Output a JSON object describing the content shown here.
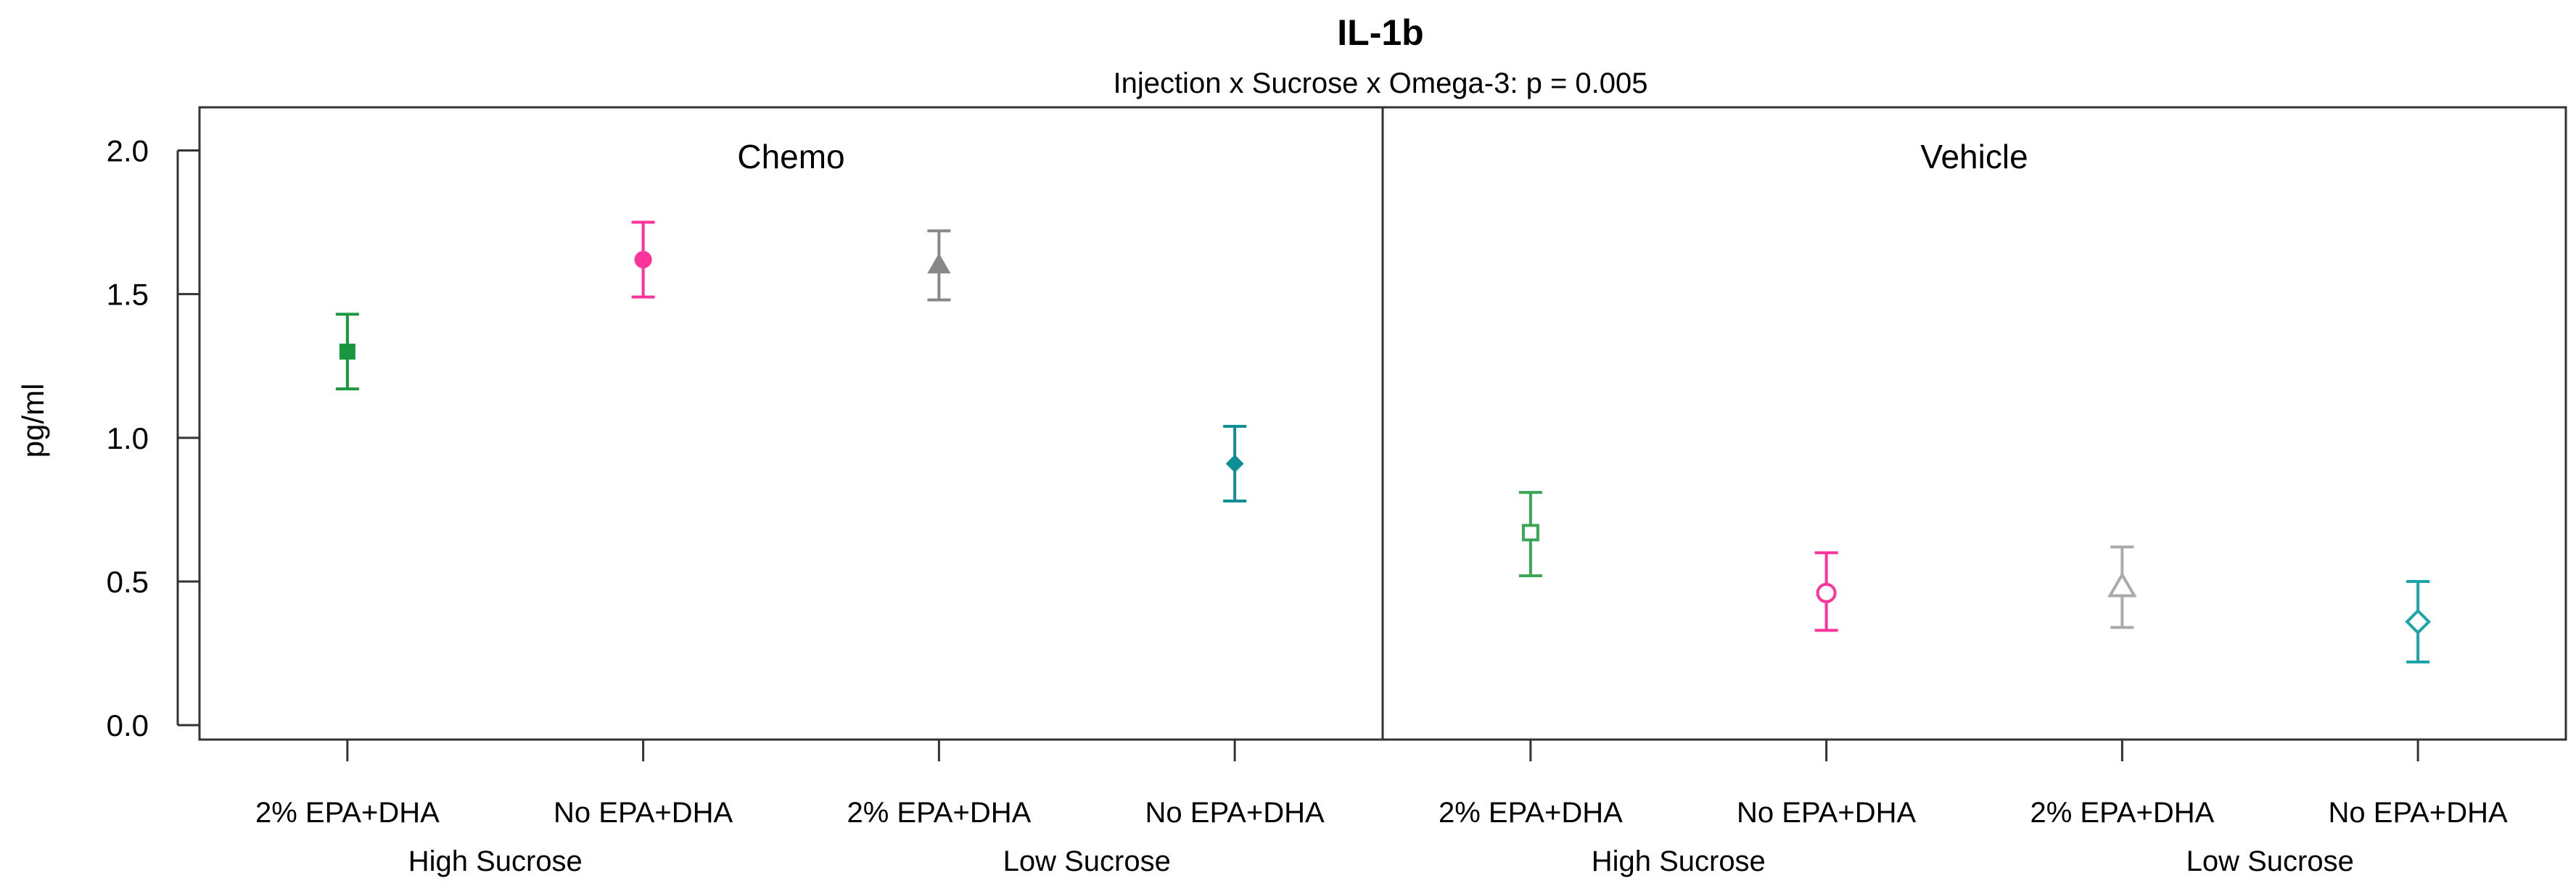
{
  "chart_data": {
    "type": "scatter",
    "subtype": "point-with-error-bars",
    "title": "IL-1b",
    "subtitle": "Injection x Sucrose x Omega-3: p = 0.005",
    "ylabel": "pg/ml",
    "xlabel": "",
    "ylim": [
      -0.05,
      2.15
    ],
    "yticks": [
      0.0,
      0.5,
      1.0,
      1.5,
      2.0
    ],
    "ytick_labels": [
      "0.0",
      "0.5",
      "1.0",
      "1.5",
      "2.0"
    ],
    "grid": false,
    "panels": [
      {
        "label": "Chemo",
        "groups": [
          "High Sucrose",
          "Low Sucrose"
        ],
        "points": [
          {
            "category": "2% EPA+DHA",
            "group": "High Sucrose",
            "mean": 1.3,
            "lower": 1.17,
            "upper": 1.43,
            "color": "#1a9641",
            "marker": "square",
            "filled": true
          },
          {
            "category": "No EPA+DHA",
            "group": "High Sucrose",
            "mean": 1.62,
            "lower": 1.49,
            "upper": 1.75,
            "color": "#ff3399",
            "marker": "circle",
            "filled": true
          },
          {
            "category": "2% EPA+DHA",
            "group": "Low Sucrose",
            "mean": 1.6,
            "lower": 1.48,
            "upper": 1.72,
            "color": "#888888",
            "marker": "triangle",
            "filled": true
          },
          {
            "category": "No EPA+DHA",
            "group": "Low Sucrose",
            "mean": 0.91,
            "lower": 0.78,
            "upper": 1.04,
            "color": "#0e8f96",
            "marker": "diamond",
            "filled": true
          }
        ]
      },
      {
        "label": "Vehicle",
        "groups": [
          "High Sucrose",
          "Low Sucrose"
        ],
        "points": [
          {
            "category": "2% EPA+DHA",
            "group": "High Sucrose",
            "mean": 0.67,
            "lower": 0.52,
            "upper": 0.81,
            "color": "#3aa655",
            "marker": "square",
            "filled": false
          },
          {
            "category": "No EPA+DHA",
            "group": "High Sucrose",
            "mean": 0.46,
            "lower": 0.33,
            "upper": 0.6,
            "color": "#ff3399",
            "marker": "circle",
            "filled": false
          },
          {
            "category": "2% EPA+DHA",
            "group": "Low Sucrose",
            "mean": 0.48,
            "lower": 0.34,
            "upper": 0.62,
            "color": "#aaaaaa",
            "marker": "triangle",
            "filled": false
          },
          {
            "category": "No EPA+DHA",
            "group": "Low Sucrose",
            "mean": 0.36,
            "lower": 0.22,
            "upper": 0.5,
            "color": "#1aa5aa",
            "marker": "diamond",
            "filled": false
          }
        ]
      }
    ]
  }
}
